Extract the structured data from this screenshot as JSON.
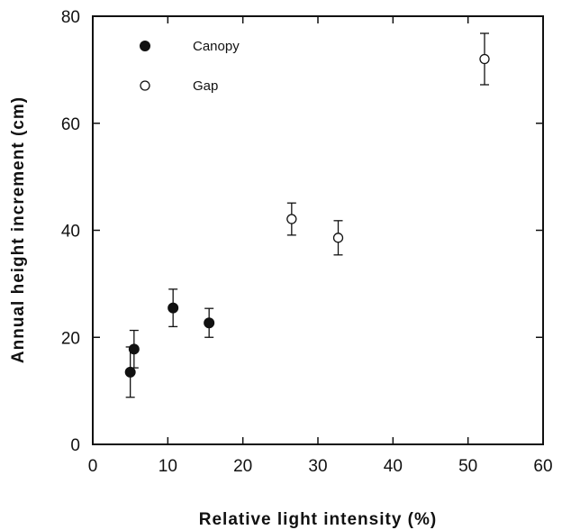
{
  "chart_data": {
    "type": "scatter",
    "title": "",
    "xlabel": "Relative light intensity (%)",
    "ylabel": "Annual height increment (cm)",
    "xlim": [
      0,
      60
    ],
    "ylim": [
      0,
      80
    ],
    "xticks": [
      "0",
      "10",
      "20",
      "30",
      "40",
      "50",
      "60"
    ],
    "yticks": [
      "0",
      "20",
      "40",
      "60",
      "80"
    ],
    "grid": false,
    "legend_position": "top-left",
    "series": [
      {
        "name": "Canopy",
        "marker": "filled-circle",
        "color": "#111111",
        "points": [
          {
            "x": 5.0,
            "y": 13.5,
            "err": 4.7
          },
          {
            "x": 5.5,
            "y": 17.8,
            "err": 3.5
          },
          {
            "x": 10.7,
            "y": 25.5,
            "err": 3.5
          },
          {
            "x": 15.5,
            "y": 22.7,
            "err": 2.7
          }
        ]
      },
      {
        "name": "Gap",
        "marker": "open-circle",
        "color": "#111111",
        "points": [
          {
            "x": 26.5,
            "y": 42.1,
            "err": 3.0
          },
          {
            "x": 32.7,
            "y": 38.6,
            "err": 3.2
          },
          {
            "x": 52.2,
            "y": 72.0,
            "err": 4.8
          }
        ]
      }
    ]
  }
}
